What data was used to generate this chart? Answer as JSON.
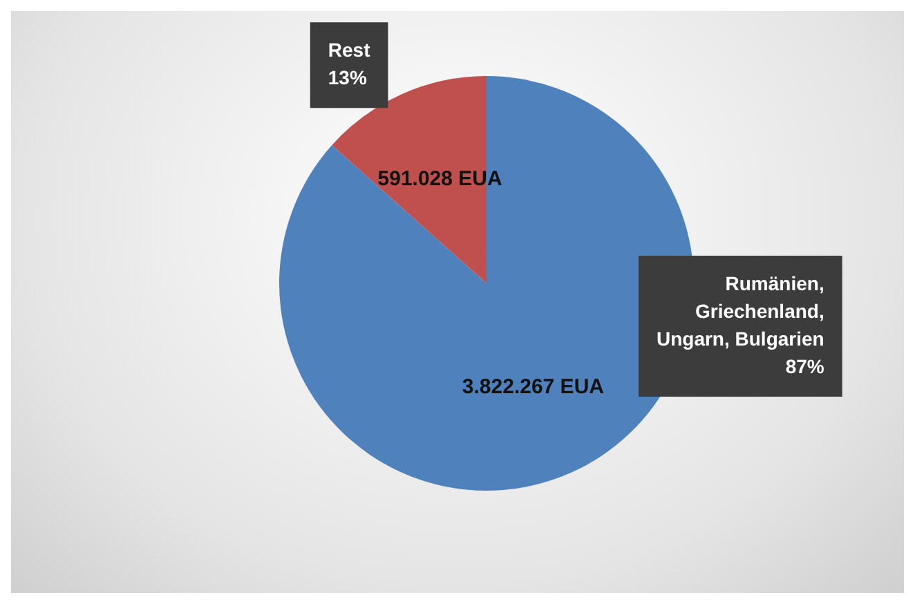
{
  "chart_data": {
    "type": "pie",
    "categories": [
      "Rumänien, Griechenland, Ungarn, Bulgarien",
      "Rest"
    ],
    "values": [
      3822267,
      591028
    ],
    "colors": [
      "#4f81bd",
      "#c0504d"
    ],
    "value_labels": [
      "3.822.267 EUA",
      "591.028 EUA"
    ],
    "annotations": [
      "87%",
      "13%"
    ],
    "legend": false
  }
}
